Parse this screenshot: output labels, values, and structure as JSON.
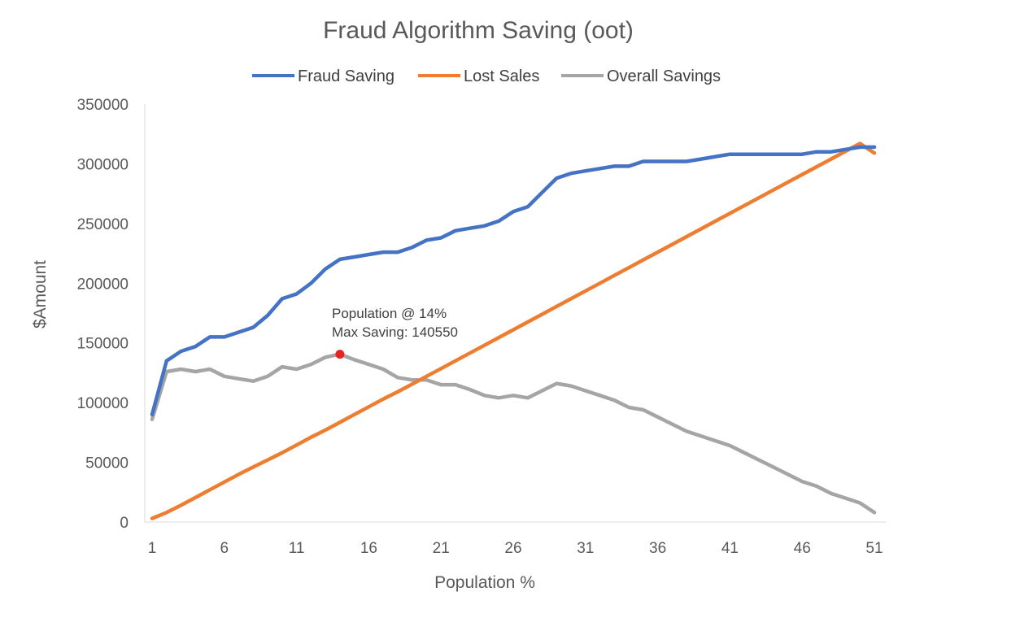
{
  "chart_data": {
    "type": "line",
    "title": "Fraud Algorithm Saving (oot)",
    "xlabel": "Population %",
    "ylabel": "$Amount",
    "ylim": [
      0,
      350000
    ],
    "y_ticks": [
      0,
      50000,
      100000,
      150000,
      200000,
      250000,
      300000,
      350000
    ],
    "x_ticks": [
      1,
      6,
      11,
      16,
      21,
      26,
      31,
      36,
      41,
      46,
      51
    ],
    "grid": false,
    "legend_position": "top",
    "x": [
      1,
      2,
      3,
      4,
      5,
      6,
      7,
      8,
      9,
      10,
      11,
      12,
      13,
      14,
      15,
      16,
      17,
      18,
      19,
      20,
      21,
      22,
      23,
      24,
      25,
      26,
      27,
      28,
      29,
      30,
      31,
      32,
      33,
      34,
      35,
      36,
      37,
      38,
      39,
      40,
      41,
      42,
      43,
      44,
      45,
      46,
      47,
      48,
      49,
      50,
      51
    ],
    "series": [
      {
        "name": "Fraud Saving",
        "color": "#4472C4",
        "values": [
          90000,
          135000,
          143000,
          147000,
          155000,
          155000,
          159000,
          163000,
          173000,
          187000,
          191000,
          200000,
          212000,
          220000,
          222000,
          224000,
          226000,
          226000,
          230000,
          236000,
          238000,
          244000,
          246000,
          248000,
          252000,
          260000,
          264000,
          276000,
          288000,
          292000,
          294000,
          296000,
          298000,
          298000,
          302000,
          302000,
          302000,
          302000,
          304000,
          306000,
          308000,
          308000,
          308000,
          308000,
          308000,
          308000,
          310000,
          310000,
          312000,
          314000,
          314000
        ]
      },
      {
        "name": "Lost Sales",
        "color": "#ED7D31",
        "values": [
          3000,
          8000,
          14000,
          20500,
          27000,
          33500,
          40000,
          46000,
          52000,
          58000,
          64500,
          71000,
          77000,
          83500,
          90000,
          96500,
          103000,
          109000,
          115500,
          122000,
          128500,
          135000,
          141500,
          148000,
          154500,
          161000,
          167500,
          174000,
          180500,
          187000,
          193500,
          200000,
          206500,
          213000,
          219500,
          226000,
          232500,
          239000,
          245500,
          252000,
          258500,
          265000,
          271500,
          278000,
          284500,
          291000,
          297500,
          304000,
          310500,
          317000,
          309000
        ]
      },
      {
        "name": "Overall Savings",
        "color": "#A5A5A5",
        "values": [
          86000,
          126000,
          128000,
          126000,
          128000,
          122000,
          120000,
          118000,
          122000,
          130000,
          128000,
          132000,
          138000,
          140550,
          136000,
          132000,
          128000,
          121000,
          119000,
          119000,
          115000,
          115000,
          111000,
          106000,
          104000,
          106000,
          104000,
          110000,
          116000,
          114000,
          110000,
          106000,
          102000,
          96000,
          94000,
          88000,
          82000,
          76000,
          72000,
          68000,
          64000,
          58000,
          52000,
          46000,
          40000,
          34000,
          30000,
          24000,
          20000,
          16000,
          8000
        ]
      }
    ],
    "annotation": {
      "lines": [
        "Population @ 14%",
        "Max Saving: 140550"
      ],
      "x": 14,
      "y": 140550,
      "marker_color": "#E8231E"
    }
  }
}
